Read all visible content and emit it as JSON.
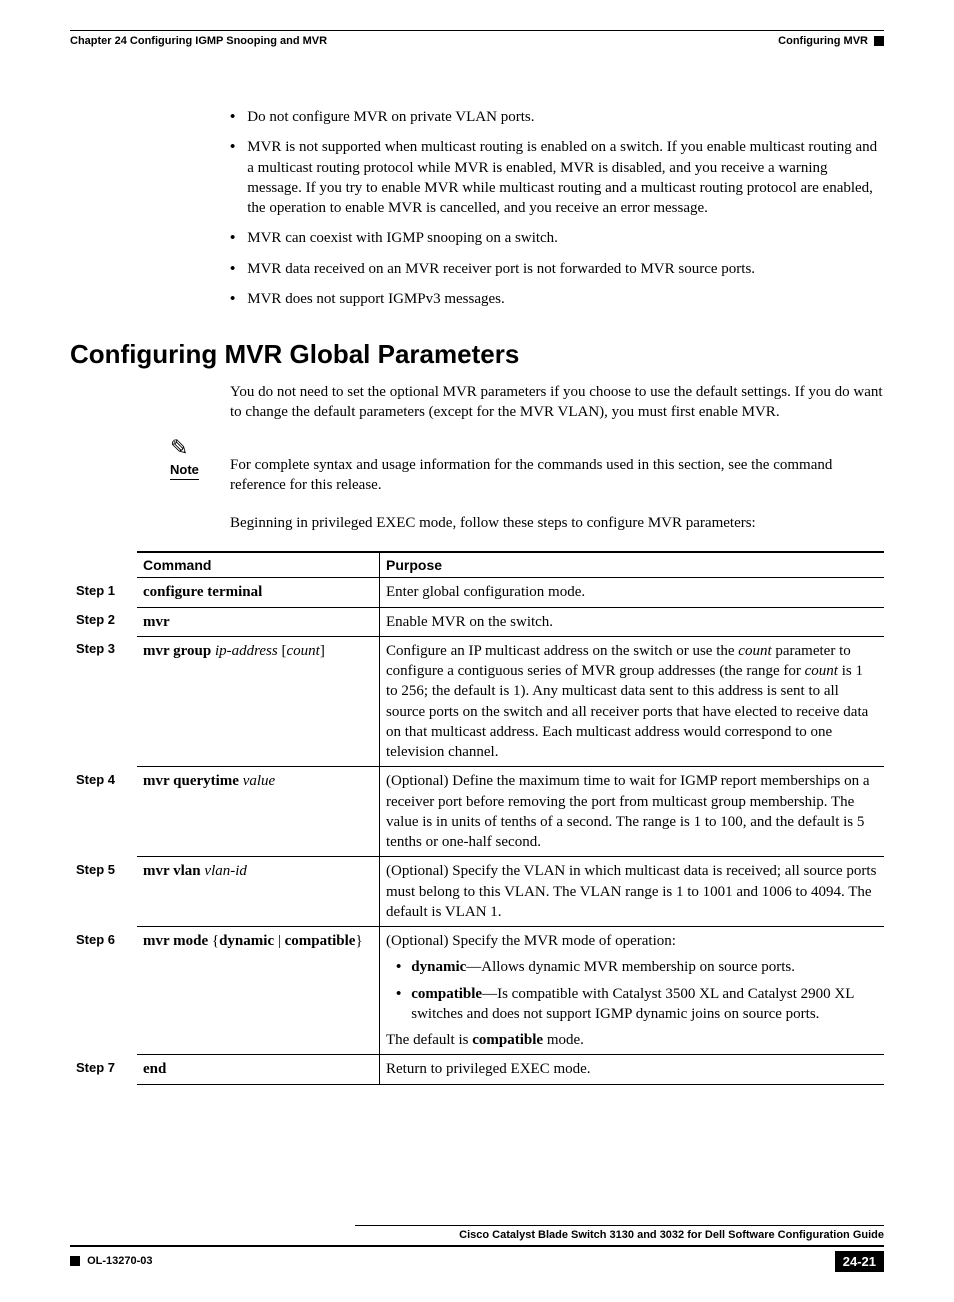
{
  "header": {
    "left": "Chapter 24    Configuring IGMP Snooping and MVR",
    "right": "Configuring MVR"
  },
  "bullets": [
    "Do not configure MVR on private VLAN ports.",
    "MVR is not supported when multicast routing is enabled on a switch. If you enable multicast routing and a multicast routing protocol while MVR is enabled, MVR is disabled, and you receive a warning message. If you try to enable MVR while multicast routing and a multicast routing protocol are enabled, the operation to enable MVR is cancelled, and you receive an error message.",
    "MVR can coexist with IGMP snooping on a switch.",
    "MVR data received on an MVR receiver port is not forwarded to MVR source ports.",
    "MVR does not support IGMPv3 messages."
  ],
  "section_title": "Configuring MVR Global Parameters",
  "intro": "You do not need to set the optional MVR parameters if you choose to use the default settings. If you do want to change the default parameters (except for the MVR VLAN), you must first enable MVR.",
  "note_label": "Note",
  "note_body": "For complete syntax and usage information for the commands used in this section, see the command reference for this release.",
  "lead_in": "Beginning in privileged EXEC mode, follow these steps to configure MVR parameters:",
  "table": {
    "head_command": "Command",
    "head_purpose": "Purpose",
    "rows": [
      {
        "step": "Step 1",
        "cmd_html": "<b>configure terminal</b>",
        "purpose_html": "Enter global configuration mode."
      },
      {
        "step": "Step 2",
        "cmd_html": "<b>mvr</b>",
        "purpose_html": "Enable MVR on the switch."
      },
      {
        "step": "Step 3",
        "cmd_html": "<b>mvr group</b> <i>ip-address</i> [<i>count</i>]",
        "purpose_html": "Configure an IP multicast address on the switch or use the <i>count</i> parameter to configure a contiguous series of MVR group addresses (the range for <i>count</i> is 1 to 256; the default is 1). Any multicast data sent to this address is sent to all source ports on the switch and all receiver ports that have elected to receive data on that multicast address. Each multicast address would correspond to one television channel."
      },
      {
        "step": "Step 4",
        "cmd_html": "<b>mvr querytime</b> <i>value</i>",
        "purpose_html": "(Optional) Define the maximum time to wait for IGMP report memberships on a receiver port before removing the port from multicast group membership. The value is in units of tenths of a second. The range is 1 to 100, and the default is 5 tenths or one-half second."
      },
      {
        "step": "Step 5",
        "cmd_html": "<b>mvr vlan</b> <i>vlan-id</i>",
        "purpose_html": "(Optional) Specify the VLAN in which multicast data is received; all source ports must belong to this VLAN. The VLAN range is 1 to 1001 and 1006 to 4094. The default is VLAN 1."
      },
      {
        "step": "Step 6",
        "cmd_html": "<b>mvr mode</b> {<b>dynamic</b> | <b>compatible</b>}",
        "purpose_html": "(Optional) Specify the MVR mode of operation:<div class=\"inner-bullet\"><span class=\"inner-dot\">•</span><span><b>dynamic</b>—Allows dynamic MVR membership on source ports.</span></div><div class=\"inner-bullet\"><span class=\"inner-dot\">•</span><span><b>compatible</b>—Is compatible with Catalyst 3500 XL and Catalyst 2900 XL switches and does not support IGMP dynamic joins on source ports.</span></div>The default is <b>compatible</b> mode."
      },
      {
        "step": "Step 7",
        "cmd_html": "<b>end</b>",
        "purpose_html": "Return to privileged EXEC mode."
      }
    ]
  },
  "footer": {
    "title": "Cisco Catalyst Blade Switch 3130 and 3032 for Dell Software Configuration Guide",
    "doc": "OL-13270-03",
    "page": "24-21"
  }
}
